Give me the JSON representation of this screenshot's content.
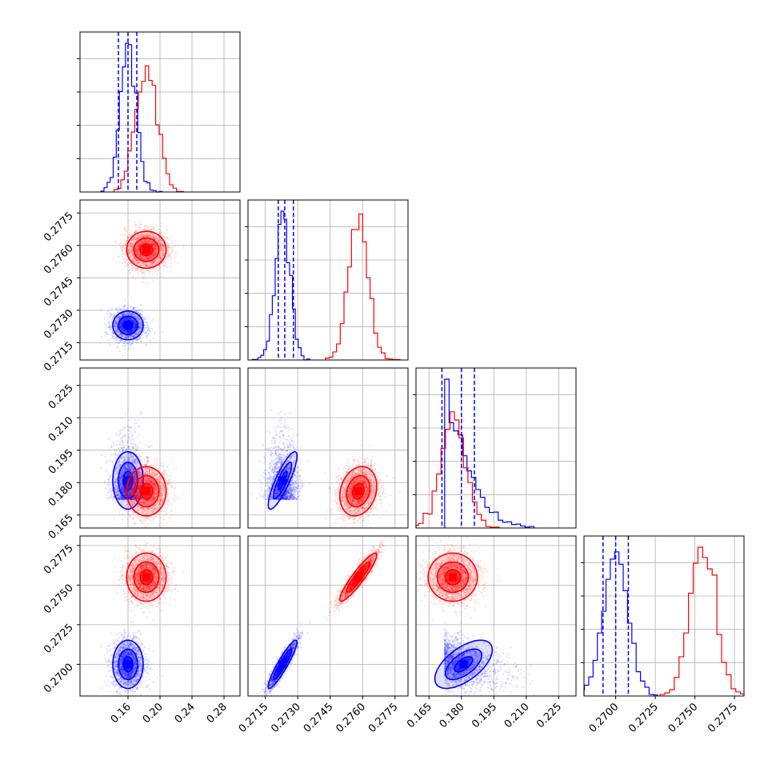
{
  "chart_data": {
    "type": "corner",
    "colors": {
      "series_a": "#0000ff",
      "series_b": "#ff0000",
      "grid": "#b0b0b0",
      "frame": "#000000"
    },
    "series": [
      {
        "color": "#0000ff",
        "mean": [
          0.16,
          0.2723,
          0.181,
          0.27
        ],
        "std": [
          0.01,
          0.00035,
          0.007,
          0.0008
        ],
        "corr": [
          [
            1,
            0,
            0,
            0
          ],
          [
            0,
            1,
            0.85,
            0.92
          ],
          [
            0,
            0.85,
            1,
            0.6
          ],
          [
            0,
            0.92,
            0.6,
            1
          ]
        ],
        "quantiles": [
          [
            0.148,
            0.16,
            0.171
          ],
          [
            0.2721,
            0.2724,
            0.2728
          ],
          [
            0.171,
            0.18,
            0.186
          ],
          [
            0.2692,
            0.27,
            0.2708
          ]
        ]
      },
      {
        "color": "#ff0000",
        "mean": [
          0.183,
          0.2758,
          0.176,
          0.2755
        ],
        "std": [
          0.013,
          0.00045,
          0.006,
          0.0008
        ],
        "corr": [
          [
            1,
            0,
            0,
            0
          ],
          [
            0,
            1,
            0.2,
            0.92
          ],
          [
            0,
            0.2,
            1,
            0.0
          ],
          [
            0,
            0.92,
            0.0,
            1
          ]
        ]
      }
    ],
    "params": [
      {
        "range": [
          0.1,
          0.3
        ],
        "ticks": [
          0.16,
          0.2,
          0.24,
          0.28
        ],
        "tick_labels": [
          "0.16",
          "0.20",
          "0.24",
          "0.28"
        ]
      },
      {
        "range": [
          0.2707,
          0.2781
        ],
        "ticks": [
          0.2715,
          0.273,
          0.2745,
          0.276,
          0.2775
        ],
        "tick_labels": [
          "0.2715",
          "0.2730",
          "0.2745",
          "0.2760",
          "0.2775"
        ]
      },
      {
        "range": [
          0.159,
          0.233
        ],
        "ticks": [
          0.165,
          0.18,
          0.195,
          0.21,
          0.225
        ],
        "tick_labels": [
          "0.165",
          "0.180",
          "0.195",
          "0.210",
          "0.225"
        ]
      },
      {
        "range": [
          0.268,
          0.2781
        ],
        "ticks": [
          0.27,
          0.2725,
          0.275,
          0.2775
        ],
        "tick_labels": [
          "0.2700",
          "0.2725",
          "0.2750",
          "0.2775"
        ]
      }
    ],
    "grid": true,
    "layout": "lower-triangle corner plot: 1D histograms on diagonal with dashed quantile lines, 2D scatter + density contours below"
  }
}
